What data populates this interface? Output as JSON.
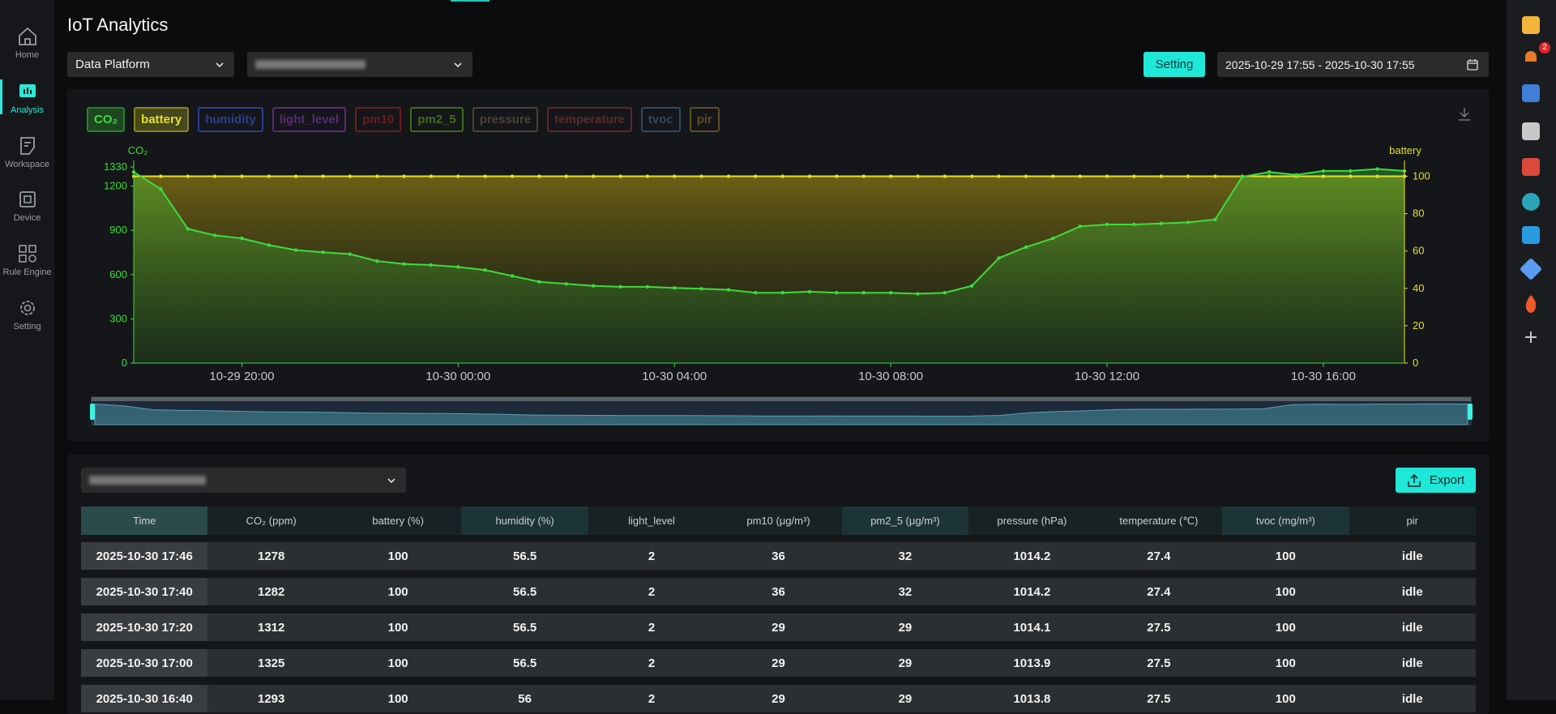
{
  "sidebar": {
    "items": [
      "Home",
      "Analysis",
      "Workspace",
      "Device",
      "Rule Engine",
      "Setting"
    ],
    "active": 1
  },
  "header": {
    "title": "IoT Analytics"
  },
  "filters": {
    "platform": "Data Platform",
    "setting_button": "Setting",
    "date_range": "2025-10-29 17:55 - 2025-10-30 17:55"
  },
  "notifications": {
    "badge": 2
  },
  "chart_data": {
    "type": "line",
    "x": [
      "10-29 18:00",
      "10-29 18:30",
      "10-29 19:00",
      "10-29 19:30",
      "10-29 20:00",
      "10-29 20:30",
      "10-29 21:00",
      "10-29 21:30",
      "10-29 22:00",
      "10-29 22:30",
      "10-29 23:00",
      "10-29 23:30",
      "10-30 00:00",
      "10-30 00:30",
      "10-30 01:00",
      "10-30 01:30",
      "10-30 02:00",
      "10-30 02:30",
      "10-30 03:00",
      "10-30 03:30",
      "10-30 04:00",
      "10-30 04:30",
      "10-30 05:00",
      "10-30 05:30",
      "10-30 06:00",
      "10-30 06:30",
      "10-30 07:00",
      "10-30 07:30",
      "10-30 08:00",
      "10-30 08:30",
      "10-30 09:00",
      "10-30 09:30",
      "10-30 10:00",
      "10-30 10:30",
      "10-30 11:00",
      "10-30 11:30",
      "10-30 12:00",
      "10-30 12:30",
      "10-30 13:00",
      "10-30 13:30",
      "10-30 14:00",
      "10-30 14:30",
      "10-30 15:00",
      "10-30 15:30",
      "10-30 16:00",
      "10-30 16:30",
      "10-30 17:00",
      "10-30 17:30"
    ],
    "xticks": [
      "10-29 20:00",
      "10-30 00:00",
      "10-30 04:00",
      "10-30 08:00",
      "10-30 12:00",
      "10-30 16:00"
    ],
    "series": [
      {
        "name": "CO₂",
        "color": "#3ddc3d",
        "values": [
          1296,
          1180,
          910,
          866,
          846,
          800,
          766,
          752,
          739,
          692,
          672,
          665,
          652,
          631,
          591,
          551,
          537,
          524,
          517,
          517,
          510,
          504,
          497,
          477,
          477,
          484,
          477,
          477,
          477,
          470,
          477,
          524,
          712,
          786,
          846,
          927,
          940,
          940,
          947,
          954,
          974,
          1263,
          1296,
          1276,
          1303,
          1303,
          1316,
          1303
        ]
      },
      {
        "name": "battery",
        "color": "#e5e02a",
        "axis": "y2",
        "values": [
          100,
          100,
          100,
          100,
          100,
          100,
          100,
          100,
          100,
          100,
          100,
          100,
          100,
          100,
          100,
          100,
          100,
          100,
          100,
          100,
          100,
          100,
          100,
          100,
          100,
          100,
          100,
          100,
          100,
          100,
          100,
          100,
          100,
          100,
          100,
          100,
          100,
          100,
          100,
          100,
          100,
          100,
          100,
          100,
          100,
          100,
          100,
          100
        ]
      }
    ],
    "inactive_series": [
      {
        "name": "humidity",
        "color": "#2b3f8f"
      },
      {
        "name": "light_level",
        "color": "#5b2a78"
      },
      {
        "name": "pm10",
        "color": "#6b1e1e"
      },
      {
        "name": "pm2_5",
        "color": "#3f6b1e"
      },
      {
        "name": "pressure",
        "color": "#4d4238"
      },
      {
        "name": "temperature",
        "color": "#5e2828"
      },
      {
        "name": "tvoc",
        "color": "#2e4a66"
      },
      {
        "name": "pir",
        "color": "#5e4e22"
      }
    ],
    "ylim": [
      0,
      1330
    ],
    "yticks": [
      0,
      300,
      600,
      900,
      1200,
      1330
    ],
    "y2lim": [
      0,
      105
    ],
    "y2ticks": [
      0,
      20,
      40,
      60,
      80,
      100
    ],
    "grid": false
  },
  "table": {
    "export_button": "Export",
    "columns": [
      "Time",
      "CO₂ (ppm)",
      "battery (%)",
      "humidity (%)",
      "light_level",
      "pm10 (μg/m³)",
      "pm2_5 (μg/m³)",
      "pressure (hPa)",
      "temperature (℃)",
      "tvoc (mg/m³)",
      "pir"
    ],
    "rows": [
      [
        "2025-10-30 17:46",
        1278,
        100,
        56.5,
        2,
        36,
        32,
        1014.2,
        27.4,
        100,
        "idle"
      ],
      [
        "2025-10-30 17:40",
        1282,
        100,
        56.5,
        2,
        36,
        32,
        1014.2,
        27.4,
        100,
        "idle"
      ],
      [
        "2025-10-30 17:20",
        1312,
        100,
        56.5,
        2,
        29,
        29,
        1014.1,
        27.5,
        100,
        "idle"
      ],
      [
        "2025-10-30 17:00",
        1325,
        100,
        56.5,
        2,
        29,
        29,
        1013.9,
        27.5,
        100,
        "idle"
      ],
      [
        "2025-10-30 16:40",
        1293,
        100,
        56,
        2,
        29,
        29,
        1013.8,
        27.5,
        100,
        "idle"
      ]
    ]
  }
}
